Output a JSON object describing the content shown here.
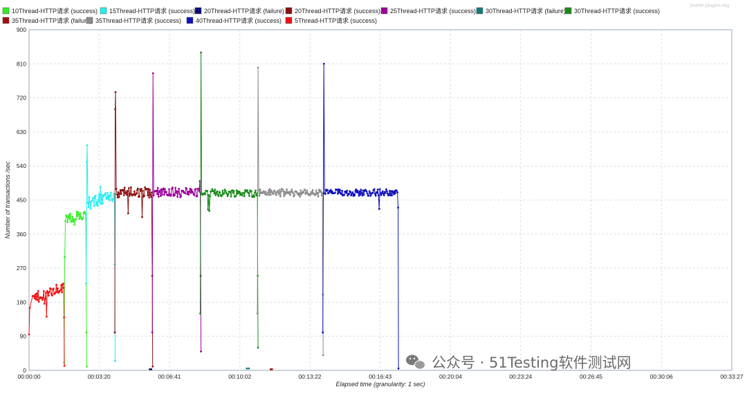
{
  "chart_data": {
    "type": "line",
    "title": "",
    "xlabel": "Elapsed time (granularity: 1 sec)",
    "ylabel": "Number of transactions /sec",
    "ylim": [
      0,
      900
    ],
    "yticks": [
      "0",
      "90",
      "180",
      "270",
      "360",
      "450",
      "540",
      "630",
      "720",
      "810",
      "900"
    ],
    "xlim": [
      0,
      2007
    ],
    "xticks": [
      {
        "t": 0,
        "label": "00:00:00"
      },
      {
        "t": 200,
        "label": "00:03:20"
      },
      {
        "t": 401,
        "label": "00:06:41"
      },
      {
        "t": 602,
        "label": "00:10:02"
      },
      {
        "t": 802,
        "label": "00:13:22"
      },
      {
        "t": 1003,
        "label": "00:16:43"
      },
      {
        "t": 1204,
        "label": "00:20:04"
      },
      {
        "t": 1404,
        "label": "00:23:24"
      },
      {
        "t": 1605,
        "label": "00:26:45"
      },
      {
        "t": 1806,
        "label": "00:30:06"
      },
      {
        "t": 2007,
        "label": "00:33:27"
      }
    ],
    "grid": true,
    "legend_position": "top",
    "series": [
      {
        "name": "10Thread-HTTP请求 (success)",
        "color": "#33ee22",
        "base": 405,
        "amp": 13,
        "seg": [
          [
            100,
            20
          ],
          [
            102,
            300
          ],
          [
            104,
            395
          ],
          [
            106,
            400
          ],
          [
            162,
            412
          ],
          [
            164,
            100
          ],
          [
            165,
            10
          ]
        ]
      },
      {
        "name": "15Thread-HTTP请求 (success)",
        "color": "#22eeee",
        "base": 458,
        "amp": 16,
        "seg": [
          [
            163,
            230
          ],
          [
            165,
            550
          ],
          [
            166,
            595
          ],
          [
            168,
            440
          ],
          [
            244,
            462
          ],
          [
            245,
            280
          ],
          [
            246,
            25
          ]
        ]
      },
      {
        "name": "20Thread-HTTP请求 (failure)",
        "color": "#0a0a7a",
        "base": 0,
        "amp": 0,
        "seg": [
          [
            345,
            3
          ],
          [
            349,
            3
          ]
        ]
      },
      {
        "name": "20Thread-HTTP请求 (success)",
        "color": "#8a1010",
        "base": 470,
        "amp": 14,
        "seg": [
          [
            245,
            100
          ],
          [
            246,
            690
          ],
          [
            247,
            735
          ],
          [
            249,
            470
          ],
          [
            350,
            470
          ],
          [
            352,
            250
          ],
          [
            353,
            10
          ]
        ]
      },
      {
        "name": "25Thread-HTTP请求 (success)",
        "color": "#990099",
        "base": 470,
        "amp": 13,
        "seg": [
          [
            352,
            100
          ],
          [
            354,
            785
          ],
          [
            356,
            470
          ],
          [
            489,
            470
          ],
          [
            490,
            250
          ],
          [
            491,
            50
          ]
        ]
      },
      {
        "name": "30Thread-HTTP请求 (failure)",
        "color": "#127a7a",
        "base": 0,
        "amp": 0,
        "seg": [
          [
            622,
            5
          ],
          [
            628,
            5
          ]
        ]
      },
      {
        "name": "30Thread-HTTP请求 (success)",
        "color": "#1a8a1a",
        "base": 470,
        "amp": 10,
        "seg": [
          [
            489,
            150
          ],
          [
            491,
            840
          ],
          [
            493,
            470
          ],
          [
            652,
            468
          ],
          [
            653,
            250
          ],
          [
            654,
            60
          ]
        ]
      },
      {
        "name": "35Thread-HTTP请求 (failure)",
        "color": "#a01010",
        "base": 0,
        "amp": 0,
        "seg": [
          [
            690,
            3
          ],
          [
            694,
            3
          ]
        ]
      },
      {
        "name": "35Thread-HTTP请求 (success)",
        "color": "#8c8c8c",
        "base": 470,
        "amp": 10,
        "seg": [
          [
            652,
            150
          ],
          [
            654,
            800
          ],
          [
            656,
            470
          ],
          [
            838,
            468
          ],
          [
            839,
            200
          ],
          [
            840,
            40
          ]
        ]
      },
      {
        "name": "40Thread-HTTP请求 (success)",
        "color": "#1010bb",
        "base": 471,
        "amp": 9,
        "seg": [
          [
            839,
            100
          ],
          [
            842,
            810
          ],
          [
            844,
            470
          ],
          [
            1052,
            470
          ],
          [
            1054,
            430
          ],
          [
            1055,
            5
          ]
        ]
      },
      {
        "name": "5Thread-HTTP请求 (success)",
        "color": "#ee1111",
        "base": 218,
        "amp": 15,
        "seg": [
          [
            0,
            95
          ],
          [
            2,
            165
          ],
          [
            10,
            190
          ],
          [
            99,
            218
          ],
          [
            100,
            140
          ],
          [
            101,
            12
          ]
        ]
      }
    ]
  },
  "watermark": {
    "corner_text": "jmeter-plugins.org",
    "brand_text": "公众号 · 51Testing软件测试网"
  }
}
